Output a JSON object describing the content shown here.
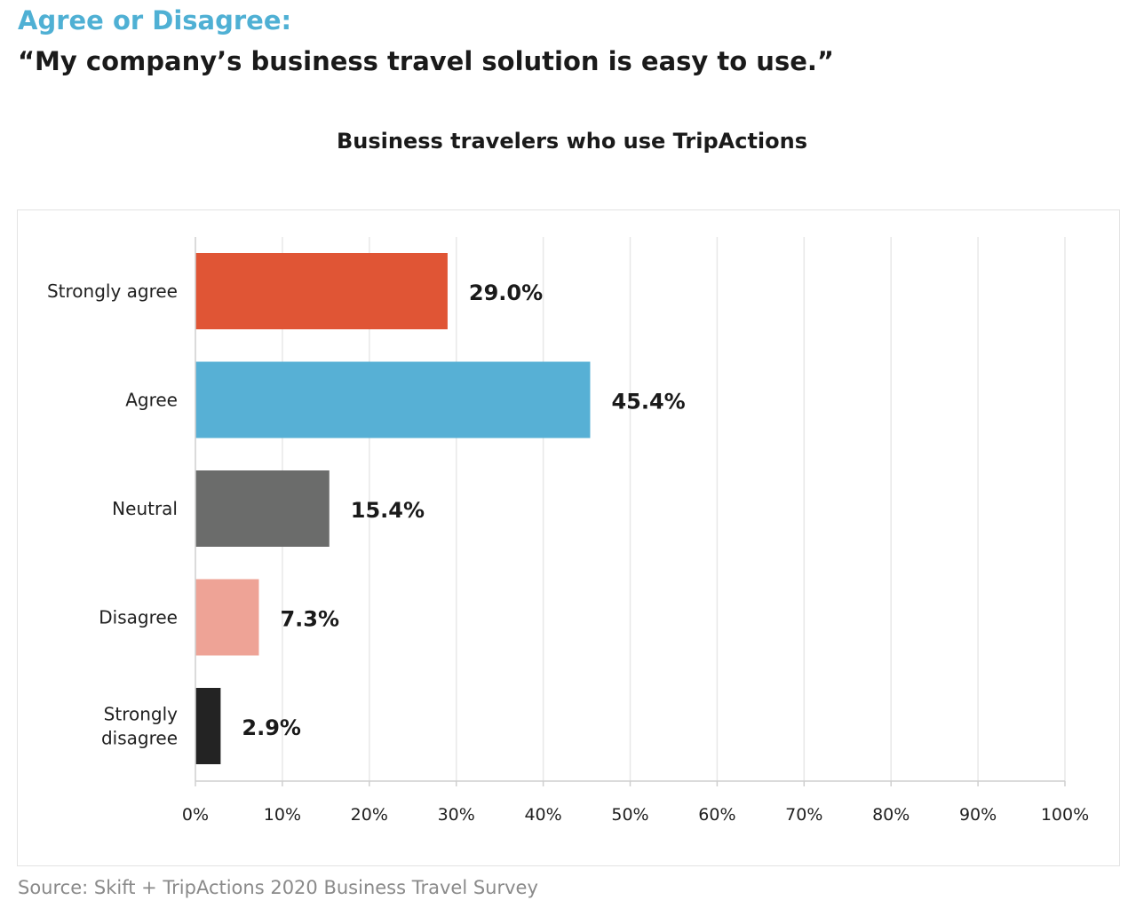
{
  "header": {
    "kicker": "Agree or Disagree:",
    "headline": "“My company’s business travel solution is easy to use.”"
  },
  "footer": {
    "source": "Source: Skift + TripActions 2020 Business Travel Survey"
  },
  "chart_data": {
    "type": "bar",
    "orientation": "horizontal",
    "title": "Business travelers who use TripActions",
    "xlabel": "",
    "ylabel": "",
    "xlim": [
      0,
      100
    ],
    "grid": true,
    "legend": "none",
    "x_ticks": [
      "0%",
      "10%",
      "20%",
      "30%",
      "40%",
      "50%",
      "60%",
      "70%",
      "80%",
      "90%",
      "100%"
    ],
    "categories": [
      "Strongly agree",
      "Agree",
      "Neutral",
      "Disagree",
      "Strongly disagree"
    ],
    "values": [
      29.0,
      45.4,
      15.4,
      7.3,
      2.9
    ],
    "data_labels": [
      "29.0%",
      "45.4%",
      "15.4%",
      "7.3%",
      "2.9%"
    ],
    "colors": [
      "#e05535",
      "#57b0d5",
      "#6b6c6b",
      "#eea396",
      "#232323"
    ]
  }
}
